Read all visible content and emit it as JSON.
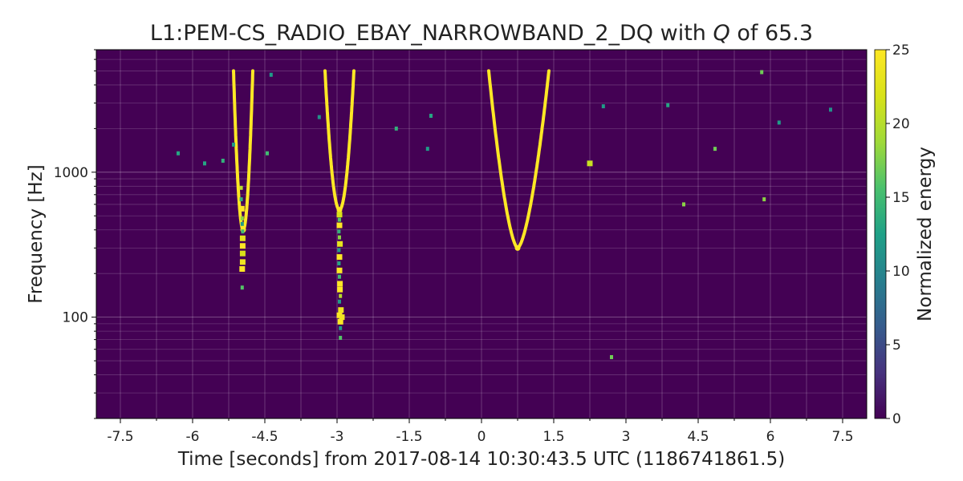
{
  "chart_data": {
    "type": "heatmap",
    "title_parts": {
      "channel": "L1:PEM-CS_RADIO_EBAY_NARROWBAND_2_DQ with ",
      "q_symbol": "Q",
      "suffix": " of 65.3"
    },
    "xlabel": "Time [seconds] from 2017-08-14 10:30:43.5 UTC (1186741861.5)",
    "ylabel": "Frequency [Hz]",
    "x_tick_labels": [
      "-7.5",
      "-6",
      "-4.5",
      "-3",
      "-1.5",
      "0",
      "1.5",
      "3",
      "4.5",
      "6",
      "7.5"
    ],
    "x_ticks": [
      -7.5,
      -6,
      -4.5,
      -3,
      -1.5,
      0,
      1.5,
      3,
      4.5,
      6,
      7.5
    ],
    "xlim": [
      -8,
      8
    ],
    "y_scale": "log",
    "y_tick_labels": [
      "100",
      "1000"
    ],
    "y_ticks": [
      100,
      1000
    ],
    "ylim": [
      20,
      7000
    ],
    "grid": true,
    "background_color": "#440154",
    "colorbar": {
      "label": "Normalized energy",
      "min": 0,
      "max": 25,
      "tick_labels": [
        "0",
        "5",
        "10",
        "15",
        "20",
        "25"
      ],
      "ticks": [
        0,
        5,
        10,
        15,
        20,
        25
      ],
      "colormap": "viridis"
    },
    "chirps": [
      {
        "t_min": -4.95,
        "f_min": 400,
        "t_left": -5.15,
        "t_right": -4.75,
        "f_top": 5000,
        "n": 2.0
      },
      {
        "t_min": -2.95,
        "f_min": 550,
        "t_left": -3.25,
        "t_right": -2.65,
        "f_top": 5000,
        "n": 2.0
      },
      {
        "t_min": 0.75,
        "f_min": 300,
        "t_left": 0.15,
        "t_right": 1.4,
        "f_top": 5000,
        "n": 1.6
      }
    ],
    "tiles": [
      {
        "t": -4.97,
        "f": 160,
        "e": 16
      },
      {
        "t": -4.97,
        "f": 215,
        "e": 25
      },
      {
        "t": -4.96,
        "f": 240,
        "e": 24
      },
      {
        "t": -4.96,
        "f": 275,
        "e": 22
      },
      {
        "t": -4.96,
        "f": 310,
        "e": 25
      },
      {
        "t": -4.96,
        "f": 350,
        "e": 23
      },
      {
        "t": -4.96,
        "f": 390,
        "e": 15
      },
      {
        "t": -4.97,
        "f": 440,
        "e": 12
      },
      {
        "t": -4.97,
        "f": 480,
        "e": 18
      },
      {
        "t": -4.98,
        "f": 560,
        "e": 25
      },
      {
        "t": -4.99,
        "f": 650,
        "e": 14
      },
      {
        "t": -4.99,
        "f": 780,
        "e": 20
      },
      {
        "t": -2.93,
        "f": 72,
        "e": 16
      },
      {
        "t": -2.93,
        "f": 84,
        "e": 12
      },
      {
        "t": -2.93,
        "f": 93,
        "e": 25
      },
      {
        "t": -2.95,
        "f": 103,
        "e": 25
      },
      {
        "t": -2.9,
        "f": 100,
        "e": 24
      },
      {
        "t": -2.92,
        "f": 112,
        "e": 24
      },
      {
        "t": -2.95,
        "f": 128,
        "e": 12
      },
      {
        "t": -2.93,
        "f": 140,
        "e": 20
      },
      {
        "t": -2.94,
        "f": 155,
        "e": 25
      },
      {
        "t": -2.94,
        "f": 170,
        "e": 25
      },
      {
        "t": -2.95,
        "f": 190,
        "e": 15
      },
      {
        "t": -2.95,
        "f": 210,
        "e": 25
      },
      {
        "t": -2.96,
        "f": 235,
        "e": 13
      },
      {
        "t": -2.95,
        "f": 260,
        "e": 25
      },
      {
        "t": -2.96,
        "f": 290,
        "e": 12
      },
      {
        "t": -2.94,
        "f": 320,
        "e": 23
      },
      {
        "t": -2.95,
        "f": 355,
        "e": 18
      },
      {
        "t": -2.96,
        "f": 390,
        "e": 14
      },
      {
        "t": -2.95,
        "f": 430,
        "e": 25
      },
      {
        "t": -2.95,
        "f": 470,
        "e": 16
      },
      {
        "t": -2.95,
        "f": 510,
        "e": 22
      },
      {
        "t": 2.7,
        "f": 53,
        "e": 17
      },
      {
        "t": -6.3,
        "f": 1350,
        "e": 13
      },
      {
        "t": -5.75,
        "f": 1150,
        "e": 13
      },
      {
        "t": -5.37,
        "f": 1200,
        "e": 14
      },
      {
        "t": -5.15,
        "f": 1550,
        "e": 12
      },
      {
        "t": -4.45,
        "f": 1350,
        "e": 15
      },
      {
        "t": -4.37,
        "f": 4700,
        "e": 12
      },
      {
        "t": -3.37,
        "f": 2400,
        "e": 11
      },
      {
        "t": -1.77,
        "f": 2000,
        "e": 14
      },
      {
        "t": -1.12,
        "f": 1450,
        "e": 12
      },
      {
        "t": -1.05,
        "f": 2450,
        "e": 13
      },
      {
        "t": 2.25,
        "f": 1150,
        "e": 21
      },
      {
        "t": 2.53,
        "f": 2850,
        "e": 12
      },
      {
        "t": 3.87,
        "f": 2900,
        "e": 13
      },
      {
        "t": 4.2,
        "f": 600,
        "e": 18
      },
      {
        "t": 4.85,
        "f": 1450,
        "e": 17
      },
      {
        "t": 5.82,
        "f": 4900,
        "e": 17
      },
      {
        "t": 5.87,
        "f": 650,
        "e": 18
      },
      {
        "t": 6.18,
        "f": 2200,
        "e": 12
      },
      {
        "t": 7.25,
        "f": 2700,
        "e": 11
      }
    ]
  }
}
